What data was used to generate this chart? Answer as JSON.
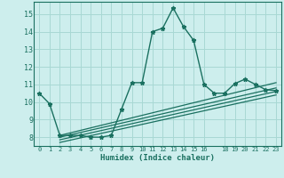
{
  "xlabel": "Humidex (Indice chaleur)",
  "bg_color": "#cdeeed",
  "grid_color": "#a8d8d4",
  "line_color": "#1a7060",
  "xlim": [
    -0.5,
    23.5
  ],
  "ylim": [
    7.5,
    15.7
  ],
  "xticks": [
    0,
    1,
    2,
    3,
    4,
    5,
    6,
    7,
    8,
    9,
    10,
    11,
    12,
    13,
    14,
    15,
    16,
    18,
    19,
    20,
    21,
    22,
    23
  ],
  "yticks": [
    8,
    9,
    10,
    11,
    12,
    13,
    14,
    15
  ],
  "main_x": [
    0,
    1,
    2,
    3,
    4,
    5,
    6,
    7,
    8,
    9,
    10,
    11,
    12,
    13,
    14,
    15,
    16,
    17,
    18,
    19,
    20,
    21,
    22,
    23
  ],
  "main_y": [
    10.5,
    9.9,
    8.1,
    8.1,
    8.1,
    8.0,
    8.0,
    8.1,
    9.6,
    11.1,
    11.1,
    14.0,
    14.2,
    15.35,
    14.3,
    13.5,
    11.0,
    10.5,
    10.5,
    11.05,
    11.3,
    11.0,
    10.7,
    10.65
  ],
  "reg_lines": [
    [
      [
        2,
        23
      ],
      [
        8.1,
        11.1
      ]
    ],
    [
      [
        2,
        23
      ],
      [
        8.0,
        10.8
      ]
    ],
    [
      [
        2,
        23
      ],
      [
        7.85,
        10.6
      ]
    ],
    [
      [
        2,
        23
      ],
      [
        7.7,
        10.4
      ]
    ]
  ]
}
